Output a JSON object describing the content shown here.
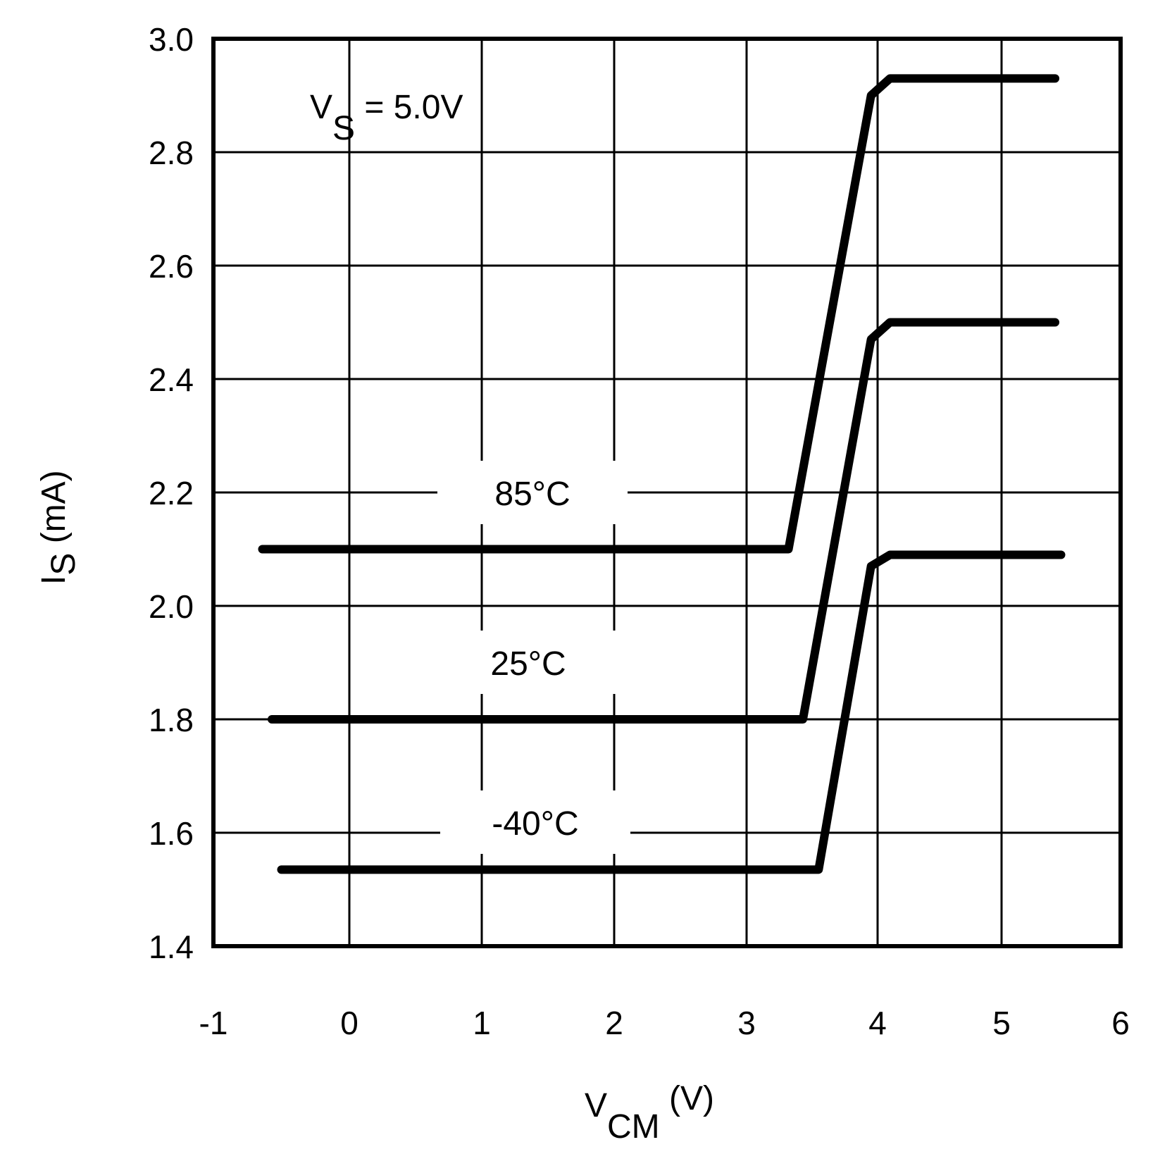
{
  "chart_data": {
    "type": "line",
    "title": "",
    "annotation": {
      "main": "V",
      "sub": "S",
      "rest": " = 5.0V"
    },
    "xlabel": {
      "main": "V",
      "sub": "CM",
      "unit": " (V)"
    },
    "ylabel": {
      "main": "I",
      "sub": "S",
      "unit": " (mA)"
    },
    "xlim": [
      -1,
      6
    ],
    "ylim": [
      1.4,
      3.0
    ],
    "xticks": [
      "-1",
      "0",
      "1",
      "2",
      "3",
      "4",
      "5",
      "6"
    ],
    "yticks": [
      "1.4",
      "1.6",
      "1.8",
      "2.0",
      "2.2",
      "2.4",
      "2.6",
      "2.8",
      "3.0"
    ],
    "grid": true,
    "legend": "inline labels",
    "series": [
      {
        "name": "85°C",
        "x": [
          -0.64,
          3.32,
          3.95,
          4.1,
          5.45
        ],
        "y": [
          2.1,
          2.1,
          2.9,
          2.93,
          2.93
        ]
      },
      {
        "name": "25°C",
        "x": [
          -0.57,
          3.43,
          3.95,
          4.1,
          5.45
        ],
        "y": [
          1.8,
          1.8,
          2.47,
          2.5,
          2.5
        ]
      },
      {
        "name": "-40°C",
        "x": [
          -0.5,
          3.55,
          3.95,
          4.1,
          5.5
        ],
        "y": [
          1.535,
          1.535,
          2.07,
          2.09,
          2.09
        ]
      }
    ]
  }
}
